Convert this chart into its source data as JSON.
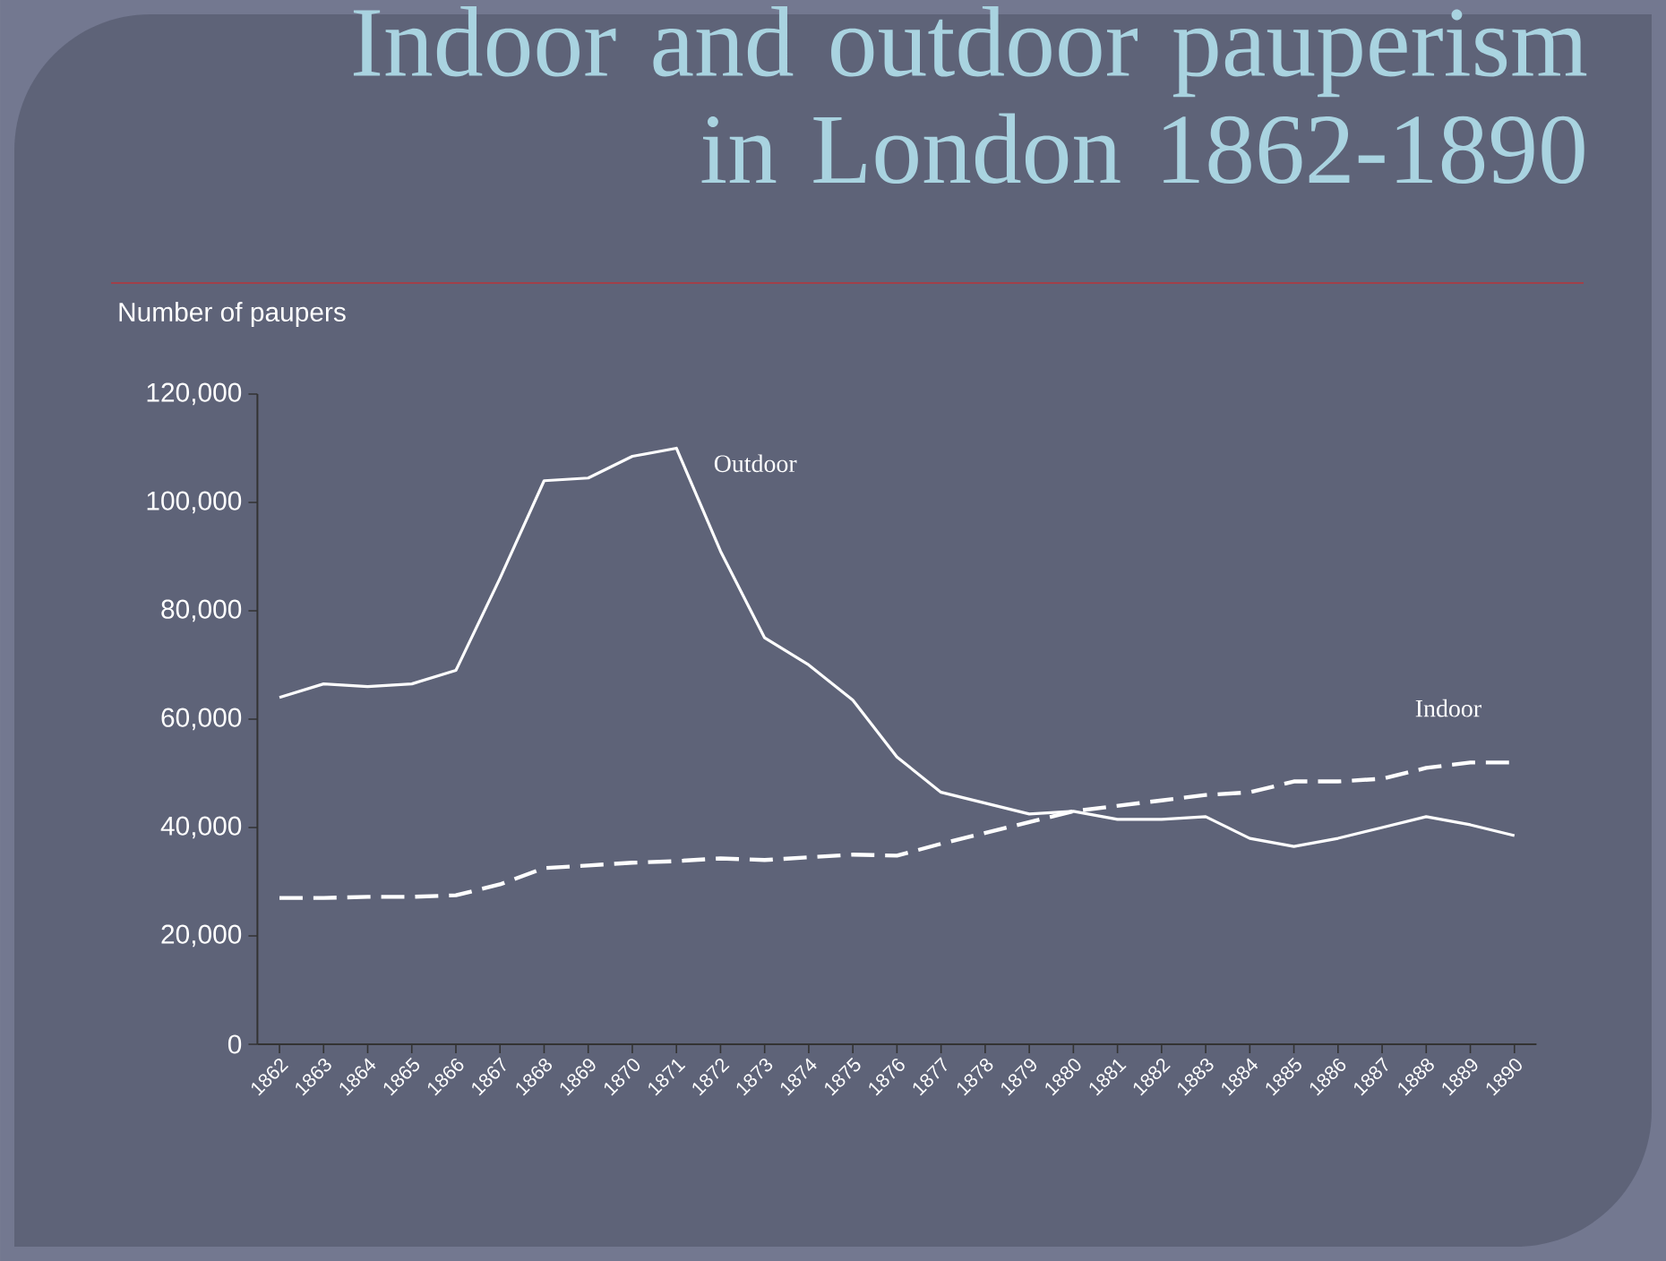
{
  "chart_data": {
    "type": "line",
    "title": "Indoor and outdoor pauperism in London 1862-1890",
    "ylabel": "Number of paupers",
    "categories": [
      "1862",
      "1863",
      "1864",
      "1865",
      "1866",
      "1867",
      "1868",
      "1869",
      "1870",
      "1871",
      "1872",
      "1873",
      "1874",
      "1875",
      "1876",
      "1877",
      "1878",
      "1879",
      "1880",
      "1881",
      "1882",
      "1883",
      "1884",
      "1885",
      "1886",
      "1887",
      "1888",
      "1889",
      "1890"
    ],
    "series": [
      {
        "name": "Outdoor",
        "color": "#ffffff",
        "line_style": "solid",
        "values": [
          64000,
          66500,
          66000,
          66500,
          69000,
          86000,
          104000,
          104500,
          108500,
          110000,
          91000,
          75000,
          70000,
          63500,
          53000,
          46500,
          44500,
          42500,
          43000,
          41500,
          41500,
          42000,
          38000,
          36500,
          38000,
          40000,
          42000,
          40500,
          38500
        ]
      },
      {
        "name": "Indoor",
        "color": "#ffffff",
        "line_style": "dashed",
        "values": [
          27000,
          27000,
          27200,
          27200,
          27500,
          29500,
          32500,
          33000,
          33500,
          33800,
          34300,
          34000,
          34500,
          35000,
          34800,
          37000,
          39000,
          41000,
          43000,
          44000,
          45000,
          46000,
          46500,
          48500,
          48500,
          49000,
          51000,
          52000,
          52000
        ]
      }
    ],
    "ylim": [
      0,
      120000
    ],
    "yticks": [
      {
        "value": 0,
        "label": "0"
      },
      {
        "value": 20000,
        "label": "20,000"
      },
      {
        "value": 40000,
        "label": "40,000"
      },
      {
        "value": 60000,
        "label": "60,000"
      },
      {
        "value": 80000,
        "label": "80,000"
      },
      {
        "value": 100000,
        "label": "100,000"
      },
      {
        "value": 120000,
        "label": "120,000"
      }
    ],
    "grid": false,
    "legend": false,
    "marker": "none"
  }
}
